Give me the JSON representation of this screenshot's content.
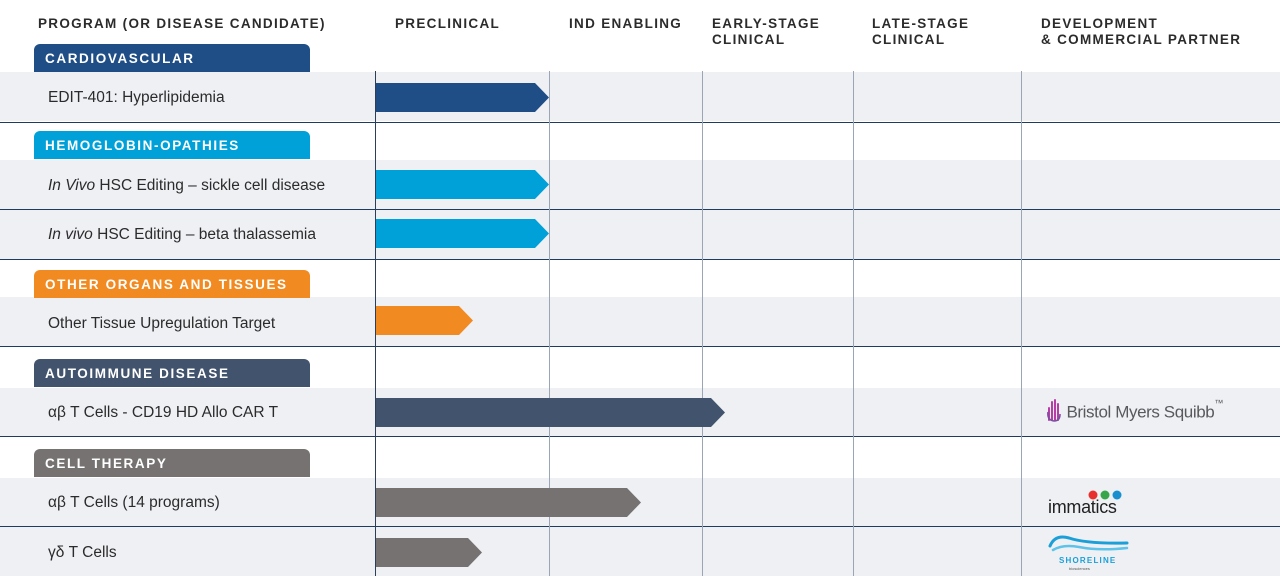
{
  "headers": {
    "program": "PROGRAM (OR DISEASE CANDIDATE)",
    "preclinical": "PRECLINICAL",
    "ind": "IND ENABLING",
    "early": "EARLY-STAGE\nCLINICAL",
    "late": "LATE-STAGE\nCLINICAL",
    "partner": "DEVELOPMENT\n& COMMERCIAL PARTNER"
  },
  "categories": {
    "cardio": "CARDIOVASCULAR",
    "hemo": "HEMOGLOBIN-OPATHIES",
    "other": "OTHER ORGANS AND TISSUES",
    "auto": "AUTOIMMUNE DISEASE",
    "cell": "CELL THERAPY"
  },
  "programs": {
    "edit401": "EDIT-401: Hyperlipidemia",
    "sickle_italic": "In Vivo",
    "sickle_rest": " HSC Editing – sickle cell disease",
    "beta_italic": "In vivo",
    "beta_rest": " HSC Editing – beta thalassemia",
    "tissue": "Other Tissue Upregulation Target",
    "cd19": "αβ T Cells - CD19 HD Allo CAR T",
    "ab14": "αβ T Cells (14 programs)",
    "gd": "γδ T Cells"
  },
  "partners": {
    "bms": "Bristol Myers Squibb",
    "bms_tm": "™",
    "immatics": "immatics",
    "shoreline": "SHORELINE",
    "shoreline_sub": "biosciences"
  },
  "colors": {
    "cardiovascular": "#1f4e86",
    "hemoglobinopathies": "#00a0d8",
    "other_organs": "#f28a22",
    "autoimmune": "#42536d",
    "cell_therapy": "#767271"
  },
  "icons": [
    "bms-hand-icon",
    "immatics-dots-icon",
    "shoreline-wave-icon"
  ]
}
